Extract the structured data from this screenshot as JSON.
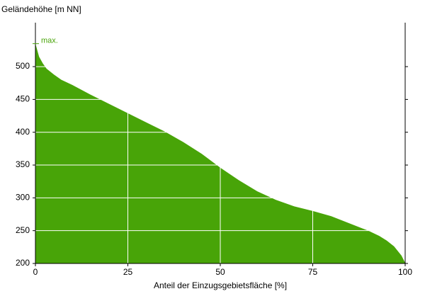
{
  "chart_data": {
    "type": "area",
    "y_label": "Geländehöhe [m NN]",
    "x_label": "Anteil der Einzugsgebietsfläche [%]",
    "annotation": "max.",
    "color": "#48a408",
    "x": [
      0,
      1,
      2,
      3,
      5,
      7,
      10,
      15,
      20,
      25,
      30,
      35,
      40,
      45,
      50,
      55,
      60,
      65,
      70,
      75,
      80,
      85,
      90,
      93,
      95,
      97,
      99,
      100
    ],
    "values": [
      535,
      515,
      505,
      497,
      488,
      480,
      472,
      457,
      443,
      429,
      415,
      401,
      385,
      367,
      346,
      327,
      310,
      297,
      287,
      280,
      272,
      261,
      250,
      242,
      235,
      226,
      212,
      201
    ],
    "xlim": [
      0,
      100
    ],
    "xticks": [
      0,
      25,
      50,
      75,
      100
    ],
    "ylim": [
      200,
      567
    ],
    "yticks": [
      200,
      250,
      300,
      350,
      400,
      450,
      500
    ],
    "grid": true
  }
}
